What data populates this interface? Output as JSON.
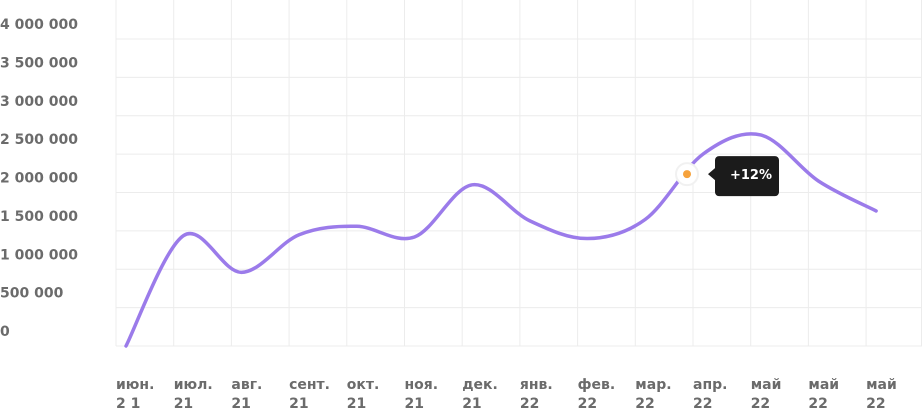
{
  "chart_data": {
    "type": "line",
    "categories": [
      "июн.",
      "июл.",
      "авг.",
      "сент.",
      "окт.",
      "ноя.",
      "дек.",
      "янв.",
      "фев.",
      "мар.",
      "апр.",
      "май",
      "май",
      "май"
    ],
    "category_years": [
      "2 1",
      "21",
      "21",
      "21",
      "21",
      "21",
      "21",
      "22",
      "22",
      "22",
      "22",
      "22",
      "22",
      "22"
    ],
    "series": [
      {
        "color": "#9b7bea",
        "values": [
          0,
          1440000,
          960000,
          1450000,
          1560000,
          1420000,
          2100000,
          1630000,
          1400000,
          1650000,
          2500000,
          2750000,
          2150000,
          1760000
        ]
      }
    ],
    "ylim": [
      0,
      4000000
    ],
    "yticks": [
      0,
      {
        "value": 500000,
        "label": "500 000"
      },
      {
        "value": 1000000,
        "label": "1 000 000"
      },
      {
        "value": 1500000,
        "label": "1 500 000"
      },
      {
        "value": 2000000,
        "label": "2 000 000"
      },
      {
        "value": 2500000,
        "label": "2 500 000"
      },
      {
        "value": 3000000,
        "label": "3 000 000"
      },
      {
        "value": 3500000,
        "label": "3 500 000"
      },
      {
        "value": 4000000,
        "label": "4 000 000"
      }
    ],
    "grid": true,
    "annotation": "+12%"
  }
}
